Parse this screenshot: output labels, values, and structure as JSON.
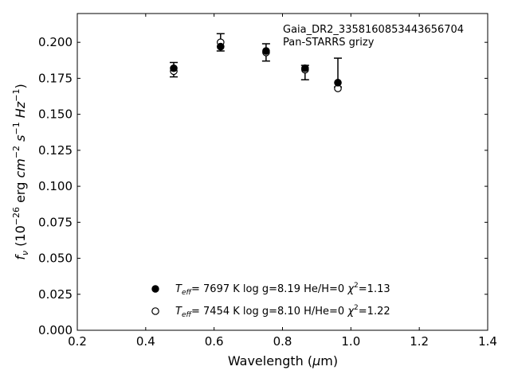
{
  "chart_data": {
    "type": "scatter",
    "title": "",
    "annotation_lines": [
      "Gaia_DR2_3358160853443656704",
      "Pan-STARRS grizy"
    ],
    "xlabel": "Wavelength (μm)",
    "ylabel": "f_ν (10^-26 erg cm^-2 s^-1 Hz^-1)",
    "xlim": [
      0.2,
      1.4
    ],
    "ylim": [
      0.0,
      0.22
    ],
    "xticks": [
      0.2,
      0.4,
      0.6,
      0.8,
      1.0,
      1.2,
      1.4
    ],
    "xtick_labels": [
      "0.2",
      "0.4",
      "0.6",
      "0.8",
      "1.0",
      "1.2",
      "1.4"
    ],
    "yticks": [
      0.0,
      0.025,
      0.05,
      0.075,
      0.1,
      0.125,
      0.15,
      0.175,
      0.2
    ],
    "ytick_labels": [
      "0.000",
      "0.025",
      "0.050",
      "0.075",
      "0.100",
      "0.125",
      "0.150",
      "0.175",
      "0.200"
    ],
    "grid": false,
    "legend_position": "lower-center",
    "observed": {
      "x": [
        0.482,
        0.619,
        0.752,
        0.866,
        0.962
      ],
      "y": [
        0.181,
        0.2,
        0.193,
        0.179,
        0.179
      ],
      "yerr": [
        0.005,
        0.006,
        0.006,
        0.005,
        0.01
      ],
      "color": "#000000"
    },
    "series": [
      {
        "marker": "filled-circle",
        "color": "#000000",
        "x": [
          0.482,
          0.619,
          0.752,
          0.866,
          0.962
        ],
        "y": [
          0.182,
          0.197,
          0.194,
          0.182,
          0.172
        ],
        "legend": {
          "teff": "7697 K",
          "logg": "log g=8.19",
          "comp": "He/H=0",
          "chi2": "=1.13"
        }
      },
      {
        "marker": "open-circle",
        "color": "#000000",
        "x": [
          0.482,
          0.619,
          0.752,
          0.866,
          0.962
        ],
        "y": [
          0.18,
          0.2,
          0.193,
          0.181,
          0.168
        ],
        "legend": {
          "teff": "7454 K",
          "logg": "log g=8.10",
          "comp": "H/He=0",
          "chi2": "=1.22"
        }
      }
    ]
  }
}
